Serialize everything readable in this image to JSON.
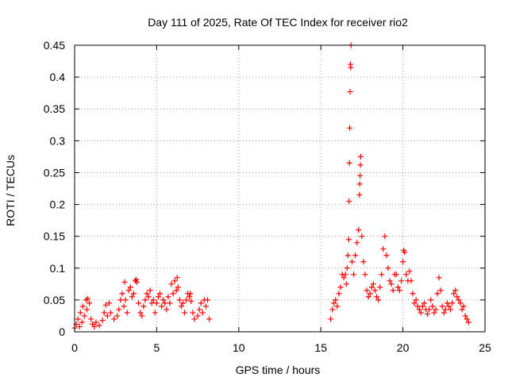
{
  "chart_data": {
    "type": "scatter",
    "title": "Day 111 of 2025, Rate Of TEC Index for receiver rio2",
    "xlabel": "GPS time / hours",
    "ylabel": "ROTI / TECUs",
    "xlim": [
      0,
      25
    ],
    "ylim": [
      0,
      0.45
    ],
    "xticks": [
      0,
      5,
      10,
      15,
      20,
      25
    ],
    "xtick_labels": [
      "0",
      "5",
      "10",
      "15",
      "20",
      "25"
    ],
    "yticks": [
      0,
      0.05,
      0.1,
      0.15,
      0.2,
      0.25,
      0.3,
      0.35,
      0.4,
      0.45
    ],
    "ytick_labels": [
      "0",
      "0.05",
      "0.1",
      "0.15",
      "0.2",
      "0.25",
      "0.3",
      "0.35",
      "0.4",
      "0.45"
    ],
    "grid": true,
    "marker": "+",
    "marker_color": "#ff0000",
    "series": [
      {
        "name": "ROTI",
        "points": [
          [
            0.0,
            0.006
          ],
          [
            0.1,
            0.012
          ],
          [
            0.2,
            0.02
          ],
          [
            0.3,
            0.008
          ],
          [
            0.35,
            0.03
          ],
          [
            0.45,
            0.015
          ],
          [
            0.5,
            0.04
          ],
          [
            0.6,
            0.025
          ],
          [
            0.7,
            0.05
          ],
          [
            0.75,
            0.035
          ],
          [
            0.8,
            0.052
          ],
          [
            0.9,
            0.045
          ],
          [
            1.0,
            0.02
          ],
          [
            1.1,
            0.012
          ],
          [
            1.2,
            0.008
          ],
          [
            1.3,
            0.015
          ],
          [
            1.5,
            0.01
          ],
          [
            1.7,
            0.018
          ],
          [
            1.8,
            0.03
          ],
          [
            1.9,
            0.042
          ],
          [
            2.0,
            0.025
          ],
          [
            2.1,
            0.045
          ],
          [
            2.2,
            0.03
          ],
          [
            2.4,
            0.02
          ],
          [
            2.6,
            0.025
          ],
          [
            2.7,
            0.035
          ],
          [
            2.8,
            0.05
          ],
          [
            2.9,
            0.06
          ],
          [
            3.0,
            0.04
          ],
          [
            3.05,
            0.078
          ],
          [
            3.1,
            0.05
          ],
          [
            3.2,
            0.03
          ],
          [
            3.3,
            0.065
          ],
          [
            3.4,
            0.07
          ],
          [
            3.5,
            0.055
          ],
          [
            3.6,
            0.06
          ],
          [
            3.7,
            0.08
          ],
          [
            3.75,
            0.082
          ],
          [
            3.8,
            0.078
          ],
          [
            3.9,
            0.045
          ],
          [
            4.0,
            0.03
          ],
          [
            4.1,
            0.025
          ],
          [
            4.2,
            0.04
          ],
          [
            4.3,
            0.05
          ],
          [
            4.4,
            0.06
          ],
          [
            4.5,
            0.055
          ],
          [
            4.6,
            0.065
          ],
          [
            4.7,
            0.045
          ],
          [
            4.8,
            0.05
          ],
          [
            4.9,
            0.03
          ],
          [
            5.0,
            0.045
          ],
          [
            5.1,
            0.055
          ],
          [
            5.2,
            0.06
          ],
          [
            5.3,
            0.04
          ],
          [
            5.4,
            0.05
          ],
          [
            5.5,
            0.045
          ],
          [
            5.6,
            0.035
          ],
          [
            5.7,
            0.055
          ],
          [
            5.8,
            0.045
          ],
          [
            5.9,
            0.075
          ],
          [
            6.0,
            0.06
          ],
          [
            6.1,
            0.08
          ],
          [
            6.2,
            0.065
          ],
          [
            6.25,
            0.085
          ],
          [
            6.3,
            0.07
          ],
          [
            6.4,
            0.05
          ],
          [
            6.5,
            0.04
          ],
          [
            6.6,
            0.045
          ],
          [
            6.7,
            0.03
          ],
          [
            6.8,
            0.05
          ],
          [
            6.9,
            0.06
          ],
          [
            7.0,
            0.055
          ],
          [
            7.05,
            0.06
          ],
          [
            7.1,
            0.048
          ],
          [
            7.2,
            0.03
          ],
          [
            7.3,
            0.02
          ],
          [
            7.5,
            0.025
          ],
          [
            7.6,
            0.035
          ],
          [
            7.7,
            0.045
          ],
          [
            7.8,
            0.03
          ],
          [
            7.9,
            0.05
          ],
          [
            8.0,
            0.04
          ],
          [
            8.1,
            0.05
          ],
          [
            8.2,
            0.02
          ],
          [
            15.6,
            0.02
          ],
          [
            15.7,
            0.035
          ],
          [
            15.8,
            0.045
          ],
          [
            15.9,
            0.05
          ],
          [
            16.0,
            0.04
          ],
          [
            16.1,
            0.06
          ],
          [
            16.2,
            0.07
          ],
          [
            16.3,
            0.09
          ],
          [
            16.4,
            0.085
          ],
          [
            16.5,
            0.09
          ],
          [
            16.55,
            0.075
          ],
          [
            16.6,
            0.1
          ],
          [
            16.65,
            0.12
          ],
          [
            16.7,
            0.145
          ],
          [
            16.72,
            0.205
          ],
          [
            16.74,
            0.265
          ],
          [
            16.76,
            0.32
          ],
          [
            16.78,
            0.377
          ],
          [
            16.8,
            0.42
          ],
          [
            16.82,
            0.415
          ],
          [
            16.84,
            0.45
          ],
          [
            16.9,
            0.11
          ],
          [
            17.0,
            0.09
          ],
          [
            17.1,
            0.12
          ],
          [
            17.2,
            0.14
          ],
          [
            17.3,
            0.16
          ],
          [
            17.35,
            0.215
          ],
          [
            17.37,
            0.232
          ],
          [
            17.39,
            0.245
          ],
          [
            17.41,
            0.262
          ],
          [
            17.43,
            0.275
          ],
          [
            17.5,
            0.15
          ],
          [
            17.6,
            0.11
          ],
          [
            17.7,
            0.09
          ],
          [
            17.8,
            0.065
          ],
          [
            17.9,
            0.055
          ],
          [
            18.0,
            0.06
          ],
          [
            18.1,
            0.07
          ],
          [
            18.2,
            0.075
          ],
          [
            18.3,
            0.065
          ],
          [
            18.4,
            0.055
          ],
          [
            18.5,
            0.05
          ],
          [
            18.6,
            0.07
          ],
          [
            18.7,
            0.09
          ],
          [
            18.8,
            0.13
          ],
          [
            18.9,
            0.15
          ],
          [
            19.0,
            0.12
          ],
          [
            19.1,
            0.1
          ],
          [
            19.2,
            0.08
          ],
          [
            19.3,
            0.075
          ],
          [
            19.4,
            0.065
          ],
          [
            19.5,
            0.09
          ],
          [
            19.6,
            0.09
          ],
          [
            19.7,
            0.07
          ],
          [
            19.8,
            0.065
          ],
          [
            19.9,
            0.08
          ],
          [
            20.0,
            0.11
          ],
          [
            20.05,
            0.128
          ],
          [
            20.1,
            0.125
          ],
          [
            20.2,
            0.09
          ],
          [
            20.3,
            0.08
          ],
          [
            20.4,
            0.095
          ],
          [
            20.5,
            0.08
          ],
          [
            20.6,
            0.06
          ],
          [
            20.7,
            0.045
          ],
          [
            20.8,
            0.05
          ],
          [
            20.9,
            0.04
          ],
          [
            21.0,
            0.035
          ],
          [
            21.1,
            0.03
          ],
          [
            21.2,
            0.04
          ],
          [
            21.3,
            0.045
          ],
          [
            21.4,
            0.035
          ],
          [
            21.5,
            0.028
          ],
          [
            21.6,
            0.035
          ],
          [
            21.7,
            0.05
          ],
          [
            21.8,
            0.04
          ],
          [
            21.9,
            0.03
          ],
          [
            22.0,
            0.035
          ],
          [
            22.1,
            0.06
          ],
          [
            22.2,
            0.085
          ],
          [
            22.3,
            0.065
          ],
          [
            22.4,
            0.04
          ],
          [
            22.5,
            0.03
          ],
          [
            22.6,
            0.035
          ],
          [
            22.7,
            0.045
          ],
          [
            22.8,
            0.04
          ],
          [
            22.9,
            0.035
          ],
          [
            23.0,
            0.045
          ],
          [
            23.1,
            0.06
          ],
          [
            23.2,
            0.065
          ],
          [
            23.3,
            0.055
          ],
          [
            23.4,
            0.05
          ],
          [
            23.5,
            0.045
          ],
          [
            23.6,
            0.035
          ],
          [
            23.7,
            0.04
          ],
          [
            23.8,
            0.025
          ],
          [
            23.9,
            0.02
          ],
          [
            24.0,
            0.015
          ]
        ]
      }
    ]
  }
}
